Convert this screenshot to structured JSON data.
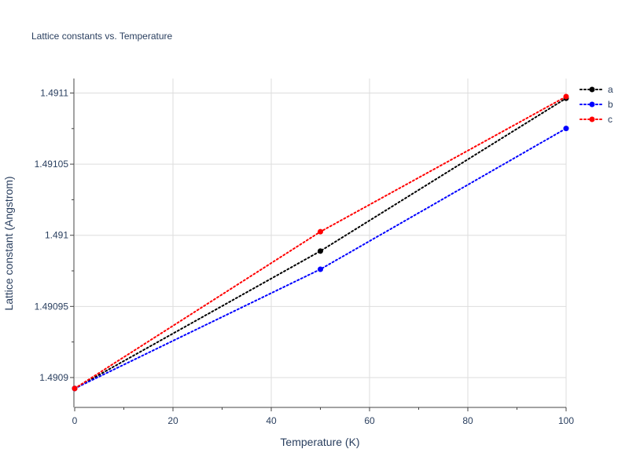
{
  "chart_data": {
    "type": "line",
    "title": "Lattice constants vs. Temperature",
    "xlabel": "Temperature (K)",
    "ylabel": "Lattice constant (Angstrom)",
    "x": [
      0,
      50,
      100
    ],
    "series": [
      {
        "name": "a",
        "color": "#000000",
        "values": [
          1.4908923,
          1.4909889,
          1.4910963
        ]
      },
      {
        "name": "b",
        "color": "#0000ff",
        "values": [
          1.4908923,
          1.4909761,
          1.4910751
        ]
      },
      {
        "name": "c",
        "color": "#ff0000",
        "values": [
          1.4908923,
          1.4910025,
          1.4910975
        ]
      }
    ],
    "xlim": [
      0,
      100
    ],
    "ylim": [
      1.490879,
      1.4911102
    ],
    "xticks": [
      0,
      20,
      40,
      60,
      80,
      100
    ],
    "xtick_labels": [
      "0",
      "20",
      "40",
      "60",
      "80",
      "100"
    ],
    "yticks": [
      1.4909,
      1.49095,
      1.491,
      1.49105,
      1.4911
    ],
    "ytick_labels": [
      "1.4909",
      "1.49095",
      "1.491",
      "1.49105",
      "1.4911"
    ],
    "line_style": "dotted",
    "markers": true,
    "grid": true,
    "legend_position": "top-right"
  }
}
